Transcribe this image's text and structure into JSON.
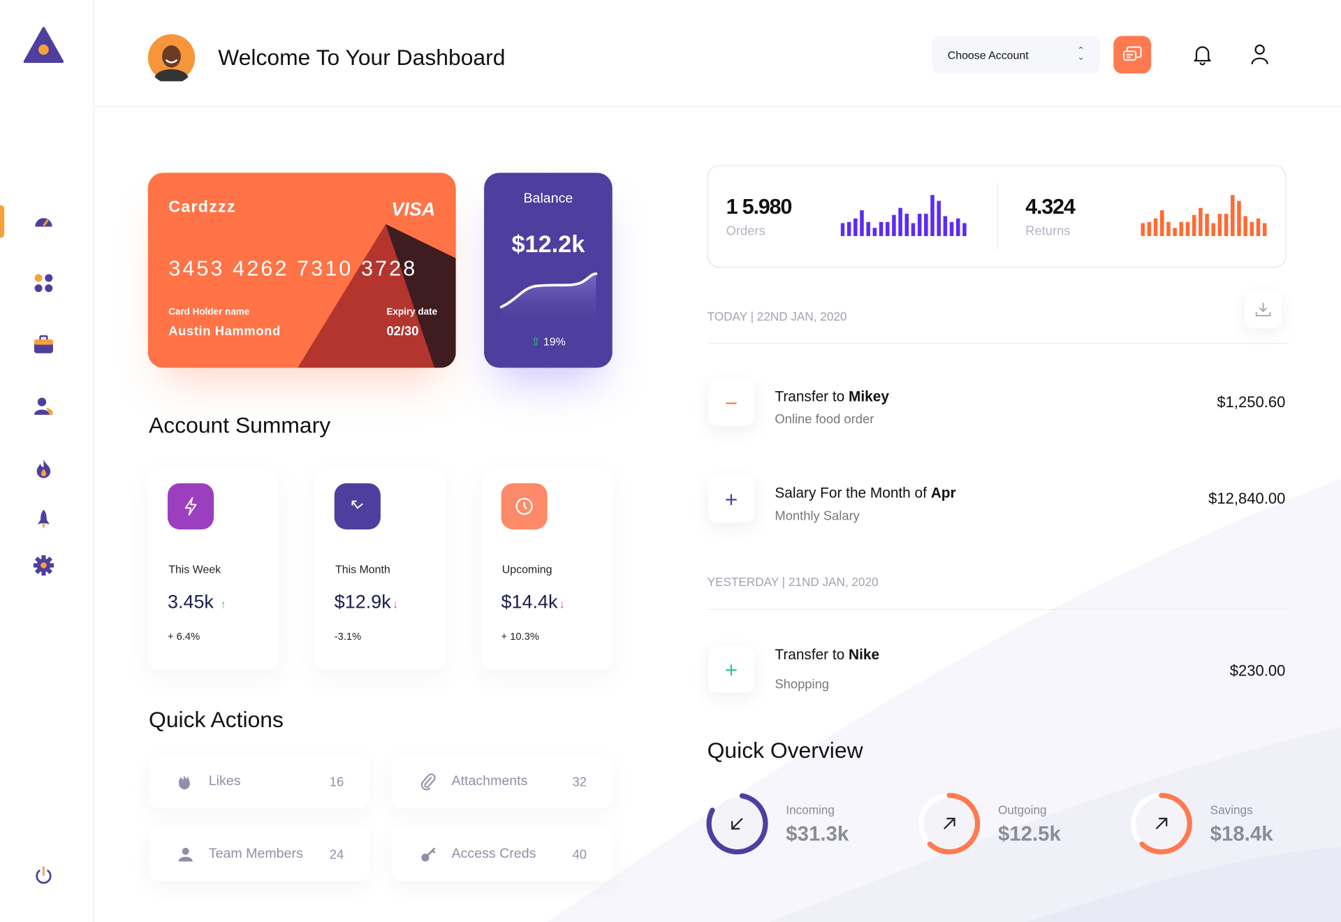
{
  "header": {
    "title": "Welcome To Your Dashboard",
    "account_select": "Choose Account"
  },
  "sidebar": {
    "items": [
      "dashboard-icon",
      "apps-icon",
      "briefcase-icon",
      "users-icon",
      "fire-icon",
      "rocket-icon",
      "settings-icon"
    ],
    "active": "dashboard-icon",
    "logout": "power-icon"
  },
  "card": {
    "brand": "Cardzzz",
    "network": "VISA",
    "number": "3453 4262 7310 3728",
    "holder_label": "Card Holder name",
    "holder": "Austin Hammond",
    "expiry_label": "Expiry date",
    "expiry": "02/30",
    "color": "#ff7346"
  },
  "balance": {
    "label": "Balance",
    "value": "$12.2k",
    "change": "19%",
    "color": "#4e3f9e"
  },
  "account_summary": {
    "title": "Account Summary",
    "items": [
      {
        "label": "This Week",
        "value": "3.45k",
        "trend": "up",
        "change": "+ 6.4%",
        "icon": "lightning-icon",
        "color": "#9b3fbf"
      },
      {
        "label": "This Month",
        "value": "$12.9k",
        "trend": "down",
        "change": "-3.1%",
        "icon": "arrow-up-left-icon",
        "color": "#4e3f9e"
      },
      {
        "label": "Upcoming",
        "value": "$14.4k",
        "trend": "down",
        "change": "+ 10.3%",
        "icon": "clock-icon",
        "color": "#fc8a68"
      }
    ]
  },
  "quick_actions": {
    "title": "Quick Actions",
    "items": [
      {
        "label": "Likes",
        "count": "16",
        "icon": "clap-icon"
      },
      {
        "label": "Attachments",
        "count": "32",
        "icon": "paperclip-icon"
      },
      {
        "label": "Team Members",
        "count": "24",
        "icon": "user-icon"
      },
      {
        "label": "Access Creds",
        "count": "40",
        "icon": "key-icon"
      }
    ]
  },
  "stats": {
    "orders": {
      "value": "1 5.980",
      "label": "Orders",
      "color": "#5a2cf5",
      "bars": [
        55,
        60,
        75,
        110,
        60,
        35,
        60,
        60,
        90,
        120,
        95,
        55,
        95,
        95,
        175,
        150,
        85,
        60,
        75,
        55
      ]
    },
    "returns": {
      "value": "4.324",
      "label": "Returns",
      "color": "#ff6a35",
      "bars": [
        55,
        60,
        75,
        110,
        60,
        35,
        60,
        60,
        90,
        120,
        95,
        55,
        95,
        95,
        175,
        150,
        85,
        60,
        75,
        55
      ]
    }
  },
  "transactions": {
    "groups": [
      {
        "label": "TODAY | 22ND JAN, 2020",
        "items": [
          {
            "prefix": "Transfer to ",
            "bold": "Mikey",
            "sub": "Online food order",
            "amount": "$1,250.60",
            "type": "minus",
            "color": "#ff7a50"
          },
          {
            "prefix": "Salary For the Month of ",
            "bold": "Apr",
            "sub": "Monthly Salary",
            "amount": "$12,840.00",
            "type": "plus",
            "color": "#4e3f9e"
          }
        ]
      },
      {
        "label": "YESTERDAY | 21ND JAN, 2020",
        "items": [
          {
            "prefix": "Transfer to ",
            "bold": "Nike",
            "sub": "Shopping",
            "amount": "$230.00",
            "type": "plus",
            "color": "#2fc48d"
          }
        ]
      }
    ]
  },
  "overview": {
    "title": "Quick Overview",
    "items": [
      {
        "label": "Incoming",
        "value": "$31.3k",
        "icon": "arrow-down-left-icon",
        "color": "#4e3f9e",
        "progress": 0.8
      },
      {
        "label": "Outgoing",
        "value": "$12.5k",
        "icon": "arrow-up-right-icon",
        "color": "#ff7a50",
        "progress": 0.62
      },
      {
        "label": "Savings",
        "value": "$18.4k",
        "icon": "arrow-up-right-icon",
        "color": "#ff7a50",
        "progress": 0.62
      }
    ]
  }
}
